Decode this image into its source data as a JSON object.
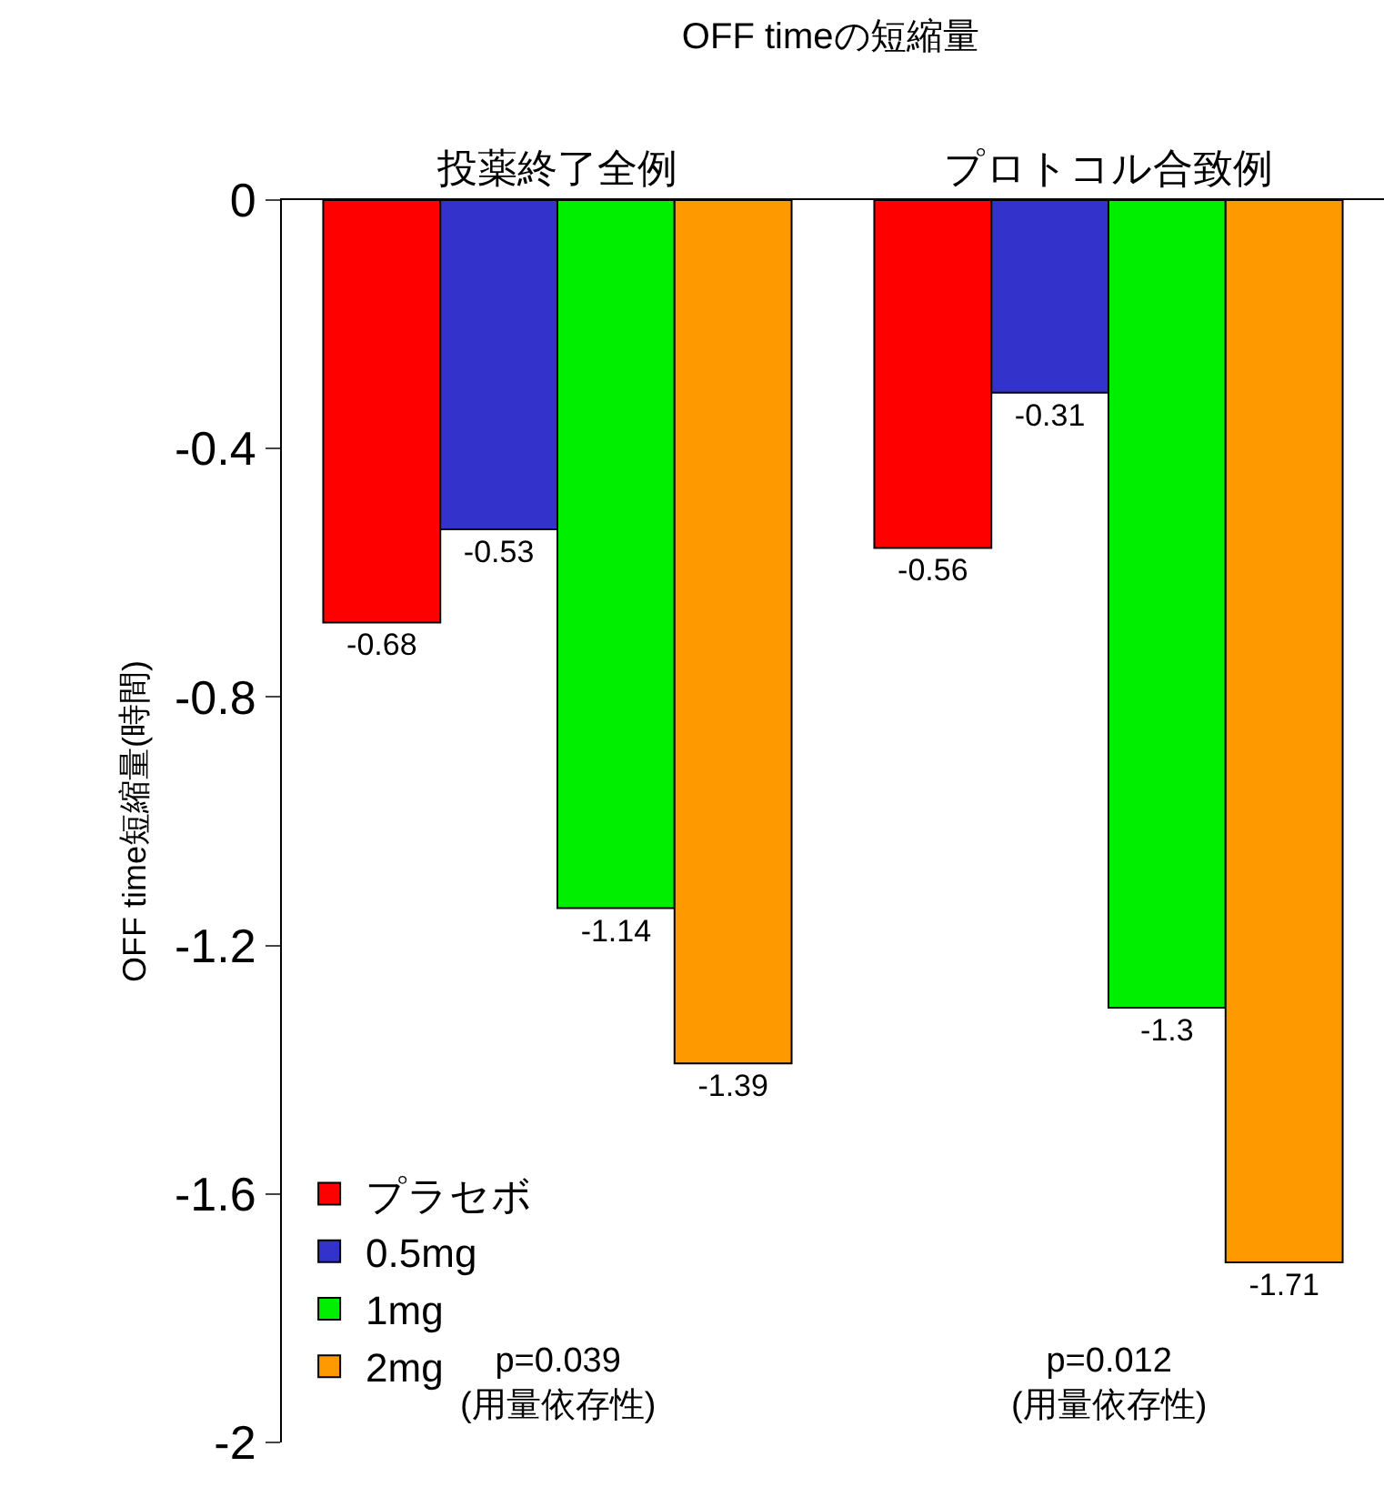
{
  "chart_data": {
    "type": "bar",
    "title": "OFF timeの短縮量",
    "ylabel": "OFF time短縮量(時間)",
    "categories": [
      "投薬終了全例",
      "プロトコル合致例"
    ],
    "series": [
      {
        "name": "プラセボ",
        "color": "#ff0000",
        "values": [
          -0.68,
          -0.56
        ]
      },
      {
        "name": "0.5mg",
        "color": "#3333cc",
        "values": [
          -0.53,
          -0.31
        ]
      },
      {
        "name": "1mg",
        "color": "#00ee00",
        "values": [
          -1.14,
          -1.3
        ]
      },
      {
        "name": "2mg",
        "color": "#ff9900",
        "values": [
          -1.39,
          -1.71
        ]
      }
    ],
    "ylim": [
      -2,
      0
    ],
    "yticks": [
      0,
      -0.4,
      -0.8,
      -1.2,
      -1.6,
      -2
    ],
    "data_labels": true,
    "legend": "bottom left",
    "annotations": [
      "p=0.039\n(用量依存性)",
      "p=0.012\n(用量依存性)"
    ]
  }
}
